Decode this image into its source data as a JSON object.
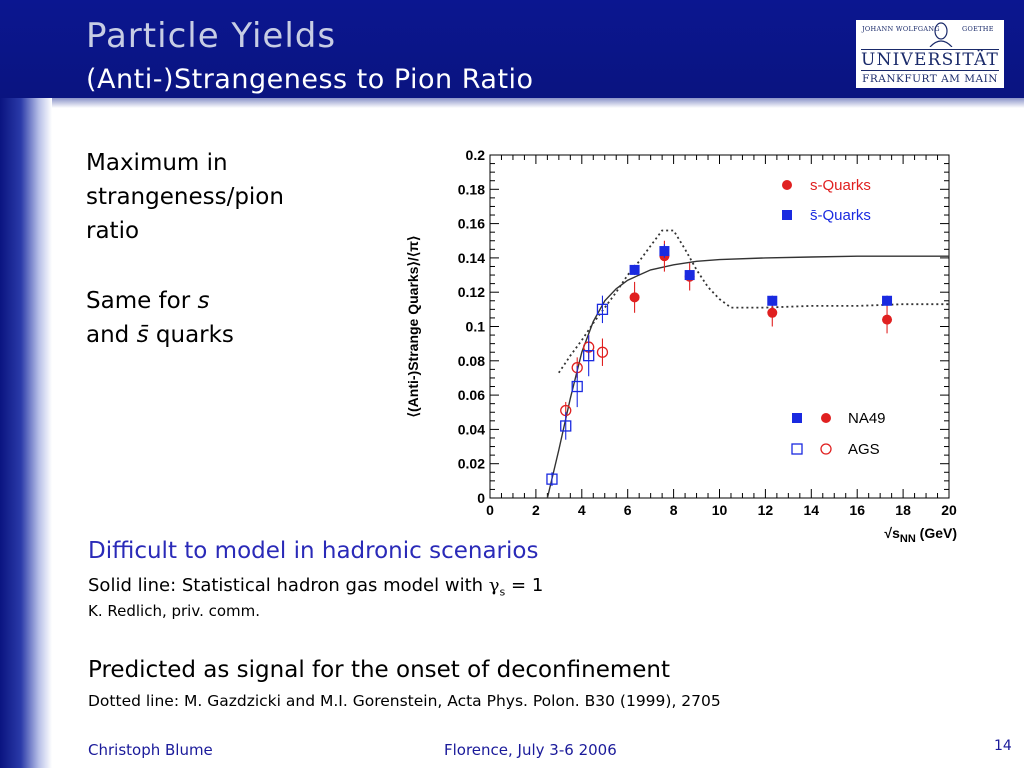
{
  "header": {
    "title": "Particle Yields",
    "subtitle": "(Anti-)Strangeness to Pion Ratio"
  },
  "logo": {
    "line1_left": "JOHANN WOLFGANG",
    "line1_right": "GOETHE",
    "line2": "UNIVERSITÄT",
    "line3": "FRANKFURT AM MAIN"
  },
  "bullets": {
    "max_line1": "Maximum in",
    "max_line2": "strangeness/pion",
    "max_line3": "ratio",
    "same_prefix": "Same for",
    "same_s": "s",
    "and_word": "and",
    "sbar": "s̄",
    "quarks_word": "quarks"
  },
  "notes": {
    "difficult": "Difficult to model in hadronic scenarios",
    "solid_line_prefix": "Solid line: Statistical hadron gas model with",
    "gamma": "γ",
    "gamma_sub": "s",
    "gamma_value": "= 1",
    "redlich": "K. Redlich, priv. comm.",
    "predicted": "Predicted as signal for the onset of deconfinement",
    "dotted_ref": "Dotted line: M. Gazdzicki and M.I. Gorenstein, Acta Phys. Polon. B30 (1999), 2705"
  },
  "footer": {
    "author": "Christoph Blume",
    "event": "Florence, July 3-6 2006",
    "page": "14"
  },
  "chart_data": {
    "type": "scatter",
    "ylabel": "⟨(Anti-)Strange Quarks⟩/⟨π⟩",
    "xlabel_main": "√s",
    "xlabel_sub": "NN",
    "xlabel_unit": "(GeV)",
    "xlim": [
      0,
      20
    ],
    "ylim": [
      0,
      0.2
    ],
    "xticks": [
      0,
      2,
      4,
      6,
      8,
      10,
      12,
      14,
      16,
      18,
      20
    ],
    "xtick_labels": [
      "0",
      "2",
      "4",
      "6",
      "8",
      "10",
      "12",
      "14",
      "16",
      "18",
      "20"
    ],
    "yticks": [
      0,
      0.02,
      0.04,
      0.06,
      0.08,
      0.1,
      0.12,
      0.14,
      0.16,
      0.18,
      0.2
    ],
    "ytick_labels": [
      "0",
      "0.02",
      "0.04",
      "0.06",
      "0.08",
      "0.1",
      "0.12",
      "0.14",
      "0.16",
      "0.18",
      "0.2"
    ],
    "legend_top": [
      {
        "label": "s-Quarks",
        "marker": "circle",
        "color": "#e02020"
      },
      {
        "label": "s̄-Quarks",
        "marker": "square",
        "color": "#1a2ae0"
      }
    ],
    "legend_bottom": [
      {
        "label": "NA49",
        "markers": [
          "square-filled",
          "circle-filled"
        ]
      },
      {
        "label": "AGS",
        "markers": [
          "square-open",
          "circle-open"
        ]
      }
    ],
    "series": [
      {
        "name": "NA49 s-Quarks",
        "marker": "circle-filled",
        "color": "#e02020",
        "x": [
          6.3,
          7.6,
          8.7,
          12.3,
          17.3
        ],
        "y": [
          0.117,
          0.141,
          0.129,
          0.108,
          0.104
        ],
        "err": [
          0.009,
          0.009,
          0.008,
          0.008,
          0.008
        ]
      },
      {
        "name": "NA49 s̄-Quarks",
        "marker": "square-filled",
        "color": "#1a2ae0",
        "x": [
          6.3,
          7.6,
          8.7,
          12.3,
          17.3
        ],
        "y": [
          0.133,
          0.144,
          0.13,
          0.115,
          0.115
        ],
        "err": [
          0.003,
          0.004,
          0.003,
          0.003,
          0.003
        ]
      },
      {
        "name": "AGS s-Quarks",
        "marker": "circle-open",
        "color": "#e02020",
        "x": [
          3.3,
          3.8,
          4.3,
          4.9
        ],
        "y": [
          0.051,
          0.076,
          0.088,
          0.085
        ],
        "err": [
          0.005,
          0.006,
          0.007,
          0.008
        ]
      },
      {
        "name": "AGS s̄-Quarks",
        "marker": "square-open",
        "color": "#1a2ae0",
        "x": [
          2.7,
          3.3,
          3.8,
          4.3,
          4.9
        ],
        "y": [
          0.011,
          0.042,
          0.065,
          0.083,
          0.11
        ],
        "err": [
          0.004,
          0.008,
          0.012,
          0.012,
          0.008
        ]
      },
      {
        "name": "Statistical hadron gas model",
        "style": "solid",
        "color": "#333333",
        "x": [
          2.5,
          3.0,
          3.5,
          4.0,
          4.5,
          5.0,
          5.5,
          6.0,
          7.0,
          8.0,
          9.0,
          10.0,
          12.0,
          14.0,
          16.0,
          18.0,
          20.0
        ],
        "y": [
          0.0,
          0.028,
          0.058,
          0.085,
          0.103,
          0.115,
          0.122,
          0.127,
          0.133,
          0.136,
          0.138,
          0.139,
          0.14,
          0.1405,
          0.141,
          0.141,
          0.141
        ]
      },
      {
        "name": "Gazdzicki-Gorenstein prediction",
        "style": "dotted",
        "color": "#333333",
        "x": [
          3.0,
          3.5,
          4.0,
          4.5,
          5.0,
          5.5,
          6.0,
          6.5,
          7.0,
          7.5,
          8.0,
          8.5,
          9.0,
          9.5,
          10.0,
          10.5,
          11.0,
          12.0,
          14.0,
          16.0,
          18.0,
          20.0
        ],
        "y": [
          0.073,
          0.083,
          0.092,
          0.102,
          0.111,
          0.12,
          0.13,
          0.138,
          0.147,
          0.156,
          0.156,
          0.145,
          0.133,
          0.123,
          0.116,
          0.111,
          0.111,
          0.111,
          0.112,
          0.112,
          0.113,
          0.113
        ]
      }
    ]
  }
}
